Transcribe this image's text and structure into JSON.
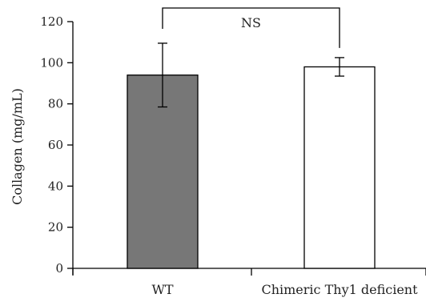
{
  "chart_data": {
    "type": "bar",
    "categories": [
      "WT",
      "Chimeric Thy1 deficient"
    ],
    "values": [
      94,
      98
    ],
    "error": [
      15.5,
      4.5
    ],
    "bar_colors": [
      "#777777",
      "#ffffff"
    ],
    "bar_stroke": "#000000",
    "title": "",
    "xlabel": "",
    "ylabel": "Collagen (mg/mL)",
    "ylim": [
      0,
      120
    ],
    "yticks": [
      0,
      20,
      40,
      60,
      80,
      100,
      120
    ],
    "grid": false,
    "legend": "none",
    "annotation": {
      "text": "NS",
      "between": [
        0,
        1
      ]
    }
  }
}
